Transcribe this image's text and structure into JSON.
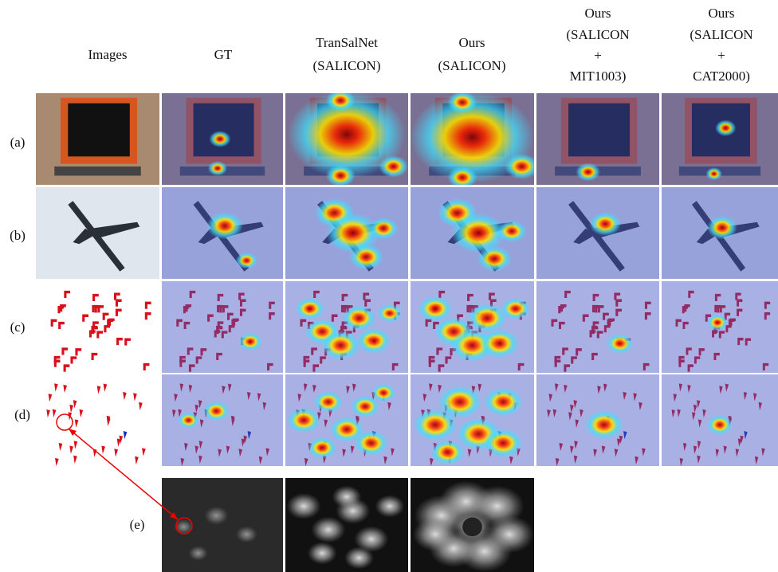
{
  "headers": [
    {
      "lines": [
        "Images"
      ]
    },
    {
      "lines": [
        "GT"
      ]
    },
    {
      "lines": [
        "TranSalNet",
        "(SALICON)"
      ]
    },
    {
      "lines": [
        "Ours",
        "(SALICON)"
      ]
    },
    {
      "lines": [
        "Ours",
        "(SALICON",
        "+",
        "MIT1003)"
      ]
    },
    {
      "lines": [
        "Ours",
        "(SALICON",
        "+",
        "CAT2000)"
      ]
    }
  ],
  "row_labels": [
    "(a)",
    "(b)",
    "(c)",
    "(d)",
    "(e)"
  ]
}
